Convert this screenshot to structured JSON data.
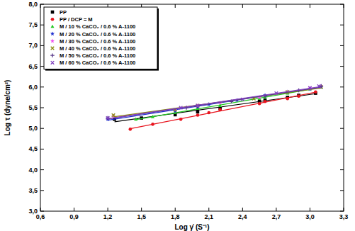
{
  "chart_data": {
    "type": "scatter",
    "x_label": "Log γ̇ (S⁻¹)",
    "y_label": "Log τ (dyne/cm²)",
    "xlim": [
      0.6,
      3.3
    ],
    "ylim": [
      3.0,
      8.0
    ],
    "xticks": [
      {
        "value": 0.6,
        "label": "0,6"
      },
      {
        "value": 0.9,
        "label": "0,9"
      },
      {
        "value": 1.2,
        "label": "1,2"
      },
      {
        "value": 1.5,
        "label": "1,5"
      },
      {
        "value": 1.8,
        "label": "1,8"
      },
      {
        "value": 2.1,
        "label": "2,1"
      },
      {
        "value": 2.4,
        "label": "2,4"
      },
      {
        "value": 2.7,
        "label": "2,7"
      },
      {
        "value": 3.0,
        "label": "3,0"
      },
      {
        "value": 3.3,
        "label": "3,3"
      }
    ],
    "yticks": [
      {
        "value": 3.0,
        "label": "3,0"
      },
      {
        "value": 3.5,
        "label": "3,5"
      },
      {
        "value": 4.0,
        "label": "4,0"
      },
      {
        "value": 4.5,
        "label": "4,5"
      },
      {
        "value": 5.0,
        "label": "5,0"
      },
      {
        "value": 5.5,
        "label": "5,5"
      },
      {
        "value": 6.0,
        "label": "6,0"
      },
      {
        "value": 6.5,
        "label": "6,5"
      },
      {
        "value": 7.0,
        "label": "7,0"
      },
      {
        "value": 7.5,
        "label": "7,5"
      },
      {
        "value": 8.0,
        "label": "8,0"
      }
    ],
    "grid": false,
    "legend": "top-left",
    "line_style": "solid",
    "series": [
      {
        "name": "PP",
        "color": "#000000",
        "marker": "square",
        "x": [
          1.26,
          1.5,
          1.8,
          2.0,
          2.2,
          2.55,
          2.6,
          2.8,
          2.9,
          3.05
        ],
        "values": [
          5.22,
          5.25,
          5.33,
          5.4,
          5.48,
          5.65,
          5.68,
          5.75,
          5.8,
          5.85
        ]
      },
      {
        "name": "PP / DCP = M",
        "color": "#e8141e",
        "marker": "circle",
        "x": [
          1.4,
          1.6,
          1.85,
          2.0,
          2.1,
          2.2,
          2.55,
          2.6,
          2.8,
          2.9,
          3.05
        ],
        "values": [
          4.98,
          5.1,
          5.22,
          5.32,
          5.38,
          5.45,
          5.6,
          5.65,
          5.72,
          5.78,
          5.88
        ]
      },
      {
        "name": "M / 10 % CaCO₂ / 0.6 % A-1100",
        "color": "#22c922",
        "marker": "triangle",
        "x": [
          1.45,
          1.6,
          1.8,
          2.0,
          2.2,
          2.55,
          2.6,
          2.8,
          3.0,
          3.1
        ],
        "values": [
          5.22,
          5.28,
          5.38,
          5.48,
          5.55,
          5.72,
          5.75,
          5.85,
          5.95,
          6.0
        ]
      },
      {
        "name": "M / 20 % CaCO₂ / 0.6 % A-1100",
        "color": "#1f2fd0",
        "marker": "star",
        "x": [
          1.2,
          1.8,
          2.0,
          2.1,
          2.35,
          2.6,
          2.8,
          3.0,
          3.1
        ],
        "values": [
          5.22,
          5.42,
          5.52,
          5.58,
          5.68,
          5.8,
          5.88,
          5.95,
          6.0
        ]
      },
      {
        "name": "M / 30 % CaCO₂ / 0.6 % A-1100",
        "color": "#f050f0",
        "marker": "star",
        "x": [
          1.25,
          1.8,
          2.0,
          2.2,
          2.55,
          2.8,
          3.0,
          3.1
        ],
        "values": [
          5.3,
          5.45,
          5.55,
          5.62,
          5.75,
          5.88,
          5.97,
          6.02
        ]
      },
      {
        "name": "M / 40 % CaCO₂ / 0.6 % A-1100",
        "color": "#8a8a10",
        "marker": "x",
        "x": [
          1.25,
          1.8,
          2.0,
          2.5,
          2.8,
          3.1
        ],
        "values": [
          5.32,
          5.45,
          5.55,
          5.72,
          5.88,
          6.0
        ]
      },
      {
        "name": "M / 50 % CaCO₂ / 0.6 % A-1100",
        "color": "#5a3a8a",
        "marker": "plus",
        "x": [
          1.2,
          1.9,
          2.3,
          2.6,
          2.9,
          3.1
        ],
        "values": [
          5.25,
          5.5,
          5.65,
          5.78,
          5.92,
          6.02
        ]
      },
      {
        "name": "M / 60 % CaCO₂ / 0.6 % A-1100",
        "color": "#8040c0",
        "marker": "x",
        "x": [
          1.2,
          1.85,
          2.0,
          2.4,
          2.7,
          3.0,
          3.08
        ],
        "values": [
          5.25,
          5.5,
          5.55,
          5.7,
          5.85,
          5.98,
          6.02
        ]
      }
    ]
  }
}
